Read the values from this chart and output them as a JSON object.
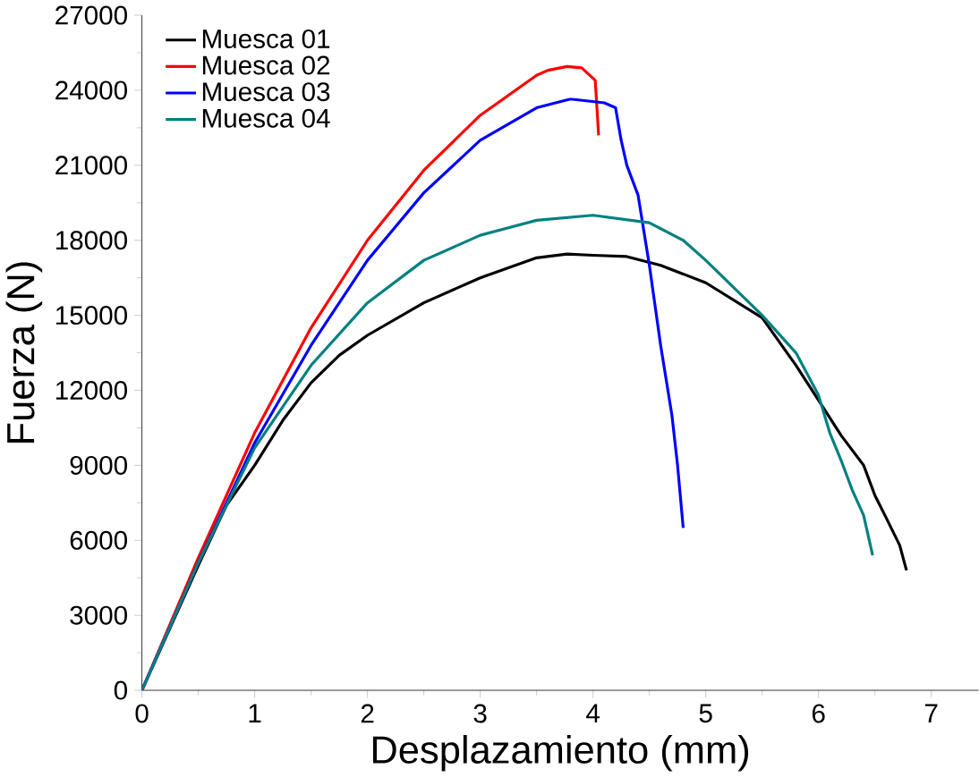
{
  "chart_data": {
    "type": "line",
    "xlabel": "Desplazamiento (mm)",
    "ylabel": "Fuerza (N)",
    "xlim": [
      0,
      7.42
    ],
    "ylim": [
      0,
      27000
    ],
    "xticks": [
      0,
      1,
      2,
      3,
      4,
      5,
      6,
      7
    ],
    "yticks": [
      0,
      3000,
      6000,
      9000,
      12000,
      15000,
      18000,
      21000,
      24000,
      27000
    ],
    "grid": false,
    "legend": "top left",
    "marker": "none",
    "line_style": "solid",
    "series": [
      {
        "name": "Muesca 01",
        "color": "#000000",
        "x": [
          0,
          0.25,
          0.5,
          0.75,
          1,
          1.25,
          1.5,
          1.75,
          2,
          2.5,
          3,
          3.5,
          3.77,
          4,
          4.3,
          4.6,
          5,
          5.5,
          5.8,
          6,
          6.2,
          6.4,
          6.5,
          6.6,
          6.72,
          6.78
        ],
        "values": [
          0,
          2500,
          5000,
          7400,
          9000,
          10800,
          12300,
          13400,
          14200,
          15500,
          16500,
          17300,
          17450,
          17400,
          17350,
          17000,
          16300,
          14900,
          13000,
          11600,
          10200,
          9000,
          7800,
          6900,
          5800,
          4800
        ]
      },
      {
        "name": "Muesca 02",
        "color": "#ff0000",
        "x": [
          0,
          0.5,
          1,
          1.5,
          2,
          2.5,
          3,
          3.5,
          3.6,
          3.77,
          3.9,
          4.02,
          4.05
        ],
        "values": [
          0,
          5300,
          10300,
          14500,
          18000,
          20800,
          23000,
          24600,
          24800,
          24950,
          24900,
          24400,
          22200
        ]
      },
      {
        "name": "Muesca 03",
        "color": "#0000ff",
        "x": [
          0,
          0.5,
          1,
          1.5,
          2,
          2.5,
          3,
          3.5,
          3.8,
          4.1,
          4.2,
          4.25,
          4.3,
          4.4,
          4.5,
          4.6,
          4.7,
          4.75,
          4.8
        ],
        "values": [
          0,
          5100,
          9900,
          13800,
          17200,
          19900,
          22000,
          23300,
          23650,
          23500,
          23300,
          22000,
          21000,
          19800,
          17000,
          13800,
          11000,
          9000,
          6500
        ]
      },
      {
        "name": "Muesca 04",
        "color": "#008080",
        "x": [
          0,
          0.5,
          1,
          1.5,
          2,
          2.5,
          3,
          3.5,
          4,
          4.5,
          4.8,
          5,
          5.5,
          5.8,
          6,
          6.1,
          6.2,
          6.3,
          6.4,
          6.48
        ],
        "values": [
          0,
          5100,
          9700,
          13000,
          15500,
          17200,
          18200,
          18800,
          19000,
          18700,
          18000,
          17200,
          15000,
          13500,
          11800,
          10300,
          9200,
          8000,
          7000,
          5400
        ]
      }
    ]
  }
}
